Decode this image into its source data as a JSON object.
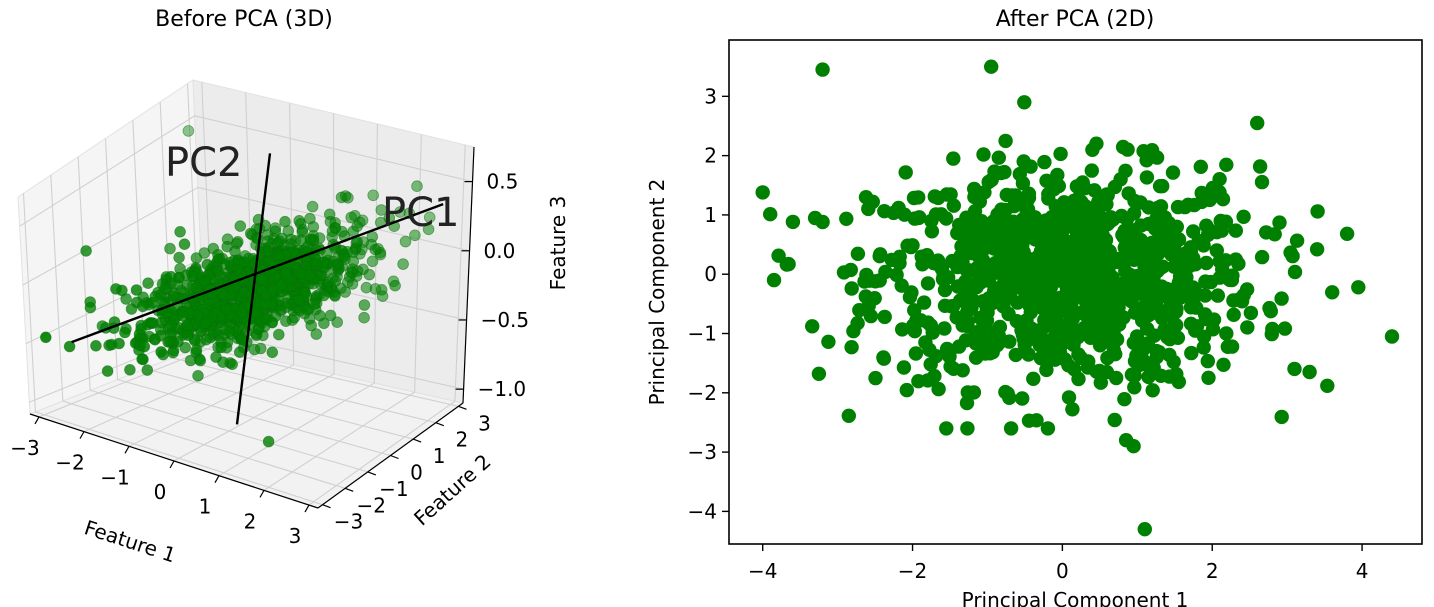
{
  "chart_data": [
    {
      "type": "scatter3d",
      "title": "Before PCA (3D)",
      "xlabel": "Feature 1",
      "ylabel": "Feature 2",
      "zlabel": "Feature 3",
      "xticks": [
        "−3",
        "−2",
        "−1",
        "0",
        "1",
        "2",
        "3"
      ],
      "yticks": [
        "−3",
        "−2",
        "−1",
        "0",
        "1",
        "2",
        "3"
      ],
      "zticks": [
        "0.5",
        "0.0",
        "−0.5",
        "−1.0"
      ],
      "xlim": [
        -3.2,
        3.2
      ],
      "ylim": [
        -3.2,
        3.2
      ],
      "zlim": [
        -1.1,
        0.75
      ],
      "grid": true,
      "axis_labels": {
        "pc1": "PC1",
        "pc2": "PC2"
      },
      "pc1_line": [
        [
          -2.8,
          -2.2,
          -0.55
        ],
        [
          3.0,
          2.4,
          0.45
        ]
      ],
      "pc2_line": [
        [
          -0.6,
          1.8,
          0.62
        ],
        [
          0.6,
          -1.7,
          -0.9
        ]
      ],
      "n_points": 1000,
      "color": "#008000",
      "outliers": [
        [
          -3.1,
          2.8,
          0.45
        ],
        [
          -3.0,
          -1.2,
          0.05
        ],
        [
          1.2,
          -1.5,
          -1.0
        ],
        [
          2.9,
          0.7,
          0.1
        ]
      ]
    },
    {
      "type": "scatter",
      "title": "After PCA (2D)",
      "xlabel": "Principal Component 1",
      "ylabel": "Principal Component 2",
      "xlim": [
        -4.45,
        4.8
      ],
      "ylim": [
        -4.55,
        3.95
      ],
      "xticks": [
        -4,
        -2,
        0,
        2,
        4
      ],
      "xtick_labels": [
        "−4",
        "−2",
        "0",
        "2",
        "4"
      ],
      "yticks": [
        3,
        2,
        1,
        0,
        -1,
        -2,
        -3,
        -4
      ],
      "ytick_labels": [
        "3",
        "2",
        "1",
        "0",
        "−1",
        "−2",
        "−3",
        "−4"
      ],
      "n_points": 1000,
      "color": "#008000",
      "outliers": [
        [
          -4.0,
          1.38
        ],
        [
          -3.2,
          3.45
        ],
        [
          -0.95,
          3.5
        ],
        [
          4.4,
          -1.05
        ],
        [
          3.95,
          -0.22
        ],
        [
          1.1,
          -4.3
        ],
        [
          -3.25,
          -1.68
        ],
        [
          -3.2,
          0.88
        ],
        [
          3.3,
          -1.65
        ],
        [
          3.4,
          0.42
        ],
        [
          -3.85,
          -0.1
        ],
        [
          -1.55,
          -2.6
        ],
        [
          2.6,
          2.55
        ],
        [
          0.85,
          -2.8
        ],
        [
          0.95,
          -2.9
        ]
      ]
    }
  ]
}
